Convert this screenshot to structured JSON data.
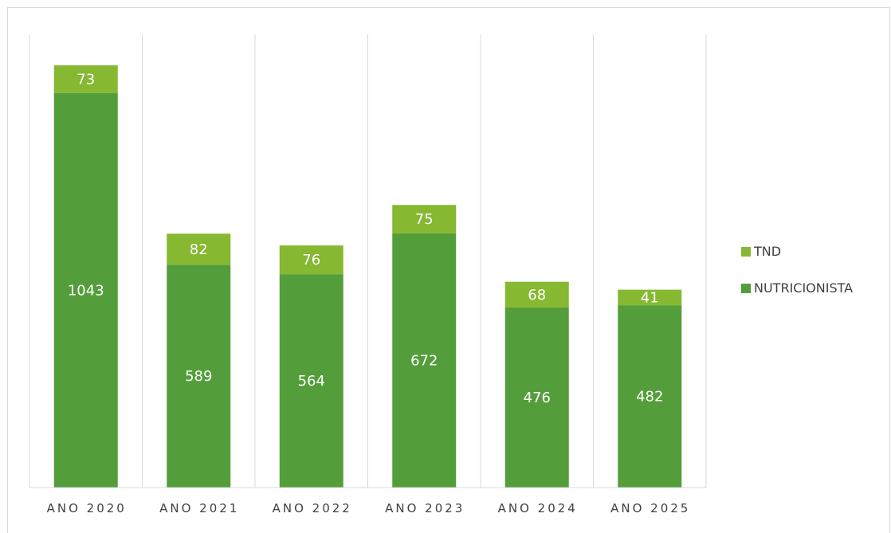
{
  "chart_data": {
    "type": "bar",
    "stacked": true,
    "categories": [
      "ANO 2020",
      "ANO 2021",
      "ANO 2022",
      "ANO 2023",
      "ANO 2024",
      "ANO 2025"
    ],
    "series": [
      {
        "name": "NUTRICIONISTA",
        "values": [
          1043,
          589,
          564,
          672,
          476,
          482
        ],
        "color": "#539e3a"
      },
      {
        "name": "TND",
        "values": [
          73,
          82,
          76,
          75,
          68,
          41
        ],
        "color": "#86b831"
      }
    ],
    "title": "",
    "xlabel": "",
    "ylabel": "",
    "ylim": [
      0,
      1116
    ],
    "grid": false,
    "vertical_separators": true,
    "legend_position": "right",
    "legend_order": [
      "TND",
      "NUTRICIONISTA"
    ],
    "axis_color": "#d9d9d9",
    "text_color": "#404040"
  }
}
